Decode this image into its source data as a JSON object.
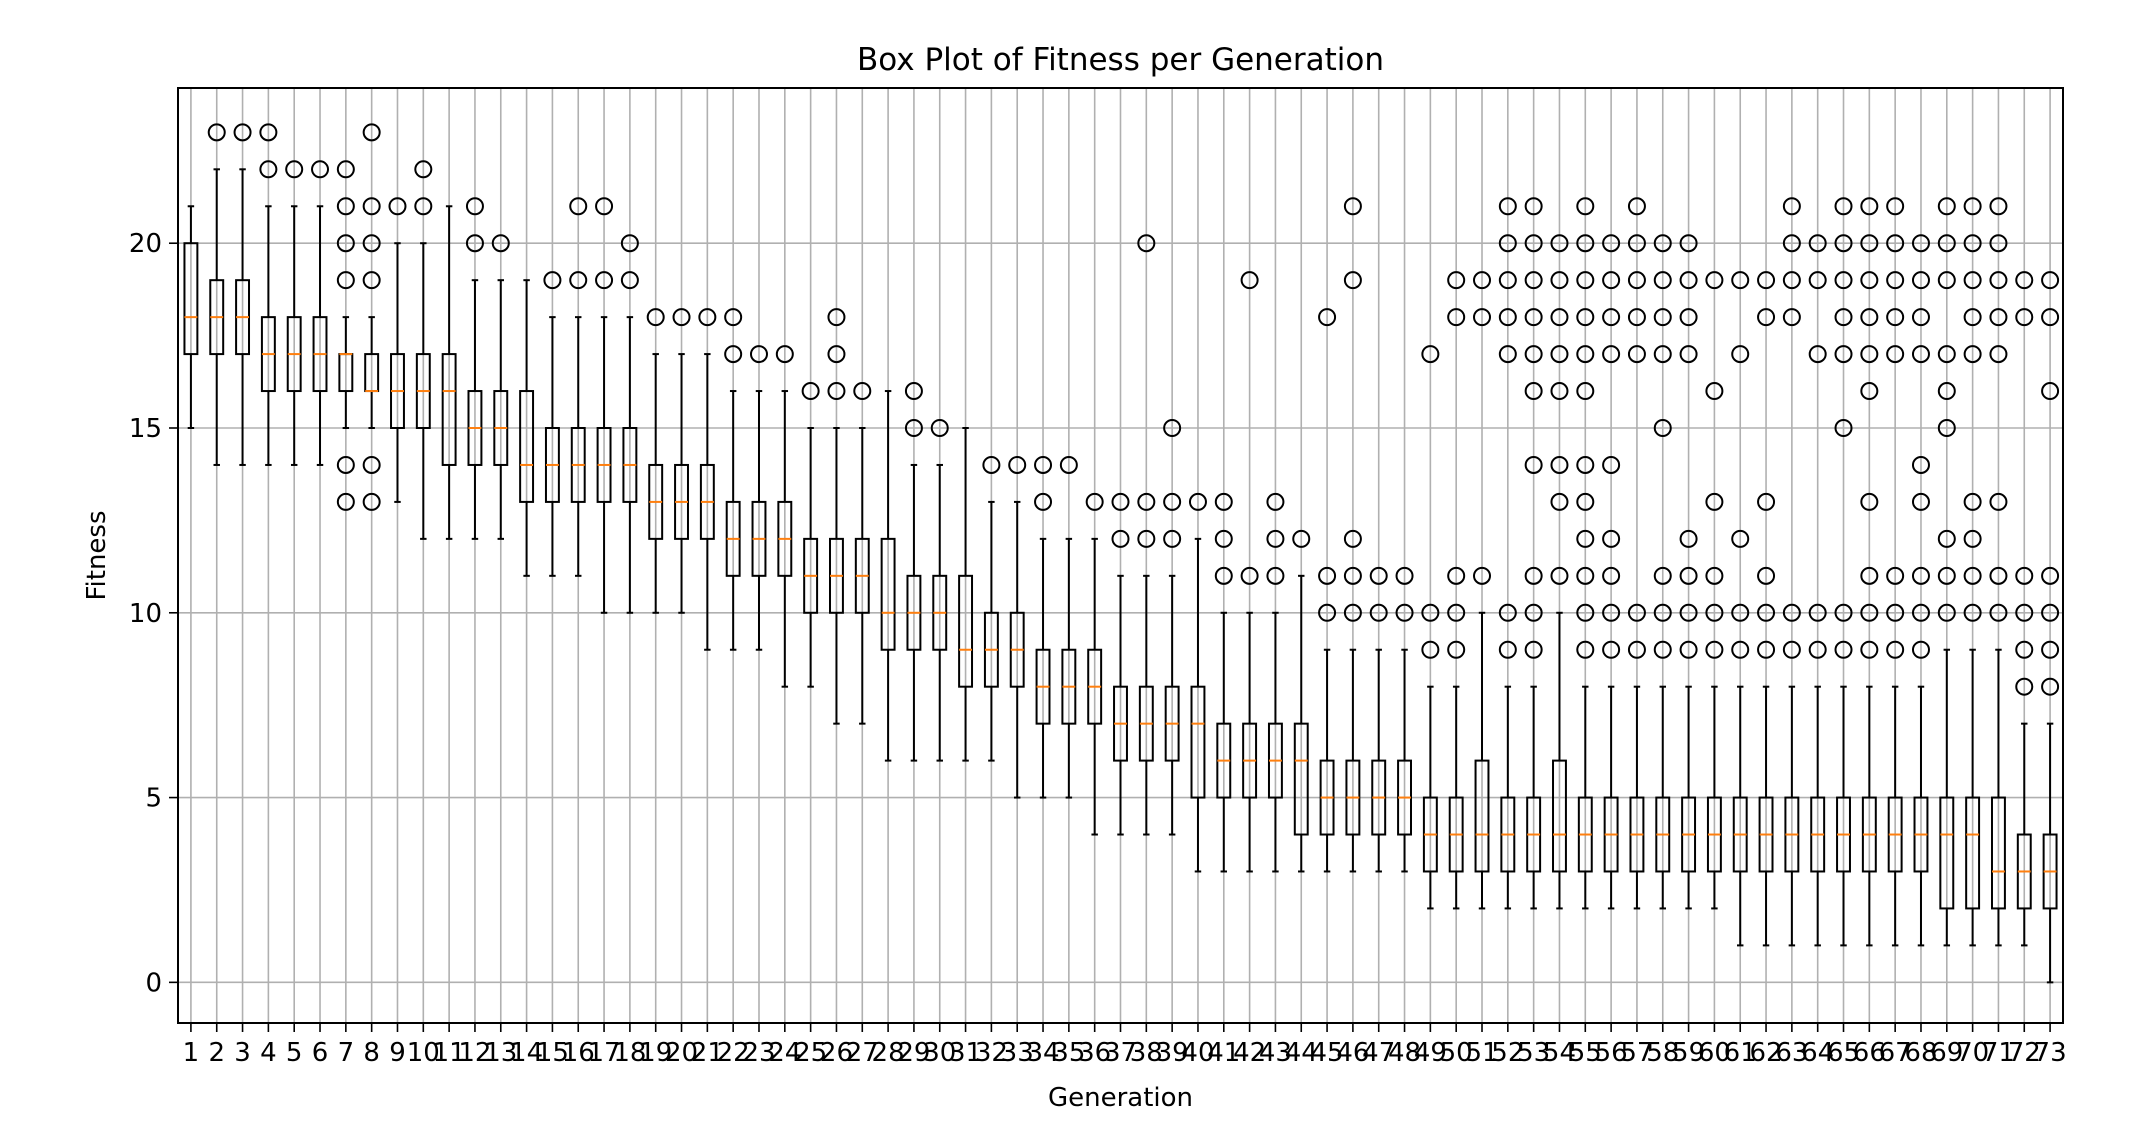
{
  "chart_data": {
    "type": "box",
    "title": "Box Plot of Fitness per Generation",
    "xlabel": "Generation",
    "ylabel": "Fitness",
    "ylim": [
      -1.1,
      24.2
    ],
    "yticks": [
      0,
      5,
      10,
      15,
      20
    ],
    "grid": true,
    "colors": {
      "box": "#000000",
      "median": "#ff7f0e",
      "grid": "#b0b0b0",
      "flier": "#000000"
    },
    "categories": [
      "1",
      "2",
      "3",
      "4",
      "5",
      "6",
      "7",
      "8",
      "9",
      "10",
      "11",
      "12",
      "13",
      "14",
      "15",
      "16",
      "17",
      "18",
      "19",
      "20",
      "21",
      "22",
      "23",
      "24",
      "25",
      "26",
      "27",
      "28",
      "29",
      "30",
      "31",
      "32",
      "33",
      "34",
      "35",
      "36",
      "37",
      "38",
      "39",
      "40",
      "41",
      "42",
      "43",
      "44",
      "45",
      "46",
      "47",
      "48",
      "49",
      "50",
      "51",
      "52",
      "53",
      "54",
      "55",
      "56",
      "57",
      "58",
      "59",
      "60",
      "61",
      "62",
      "63",
      "64",
      "65",
      "66",
      "67",
      "68",
      "69",
      "70",
      "71",
      "72",
      "73"
    ],
    "boxes": [
      {
        "whislo": 15,
        "q1": 17,
        "med": 18,
        "q3": 20,
        "whishi": 21,
        "fliers": []
      },
      {
        "whislo": 14,
        "q1": 17,
        "med": 18,
        "q3": 19,
        "whishi": 22,
        "fliers": [
          23
        ]
      },
      {
        "whislo": 14,
        "q1": 17,
        "med": 18,
        "q3": 19,
        "whishi": 22,
        "fliers": [
          23
        ]
      },
      {
        "whislo": 14,
        "q1": 16,
        "med": 17,
        "q3": 18,
        "whishi": 21,
        "fliers": [
          22,
          23
        ]
      },
      {
        "whislo": 14,
        "q1": 16,
        "med": 17,
        "q3": 18,
        "whishi": 21,
        "fliers": [
          22
        ]
      },
      {
        "whislo": 14,
        "q1": 16,
        "med": 17,
        "q3": 18,
        "whishi": 21,
        "fliers": [
          22
        ]
      },
      {
        "whislo": 15,
        "q1": 16,
        "med": 17,
        "q3": 17,
        "whishi": 18,
        "fliers": [
          13,
          14,
          19,
          20,
          21,
          22
        ]
      },
      {
        "whislo": 15,
        "q1": 16,
        "med": 16,
        "q3": 17,
        "whishi": 18,
        "fliers": [
          13,
          14,
          19,
          20,
          21,
          23
        ]
      },
      {
        "whislo": 13,
        "q1": 15,
        "med": 16,
        "q3": 17,
        "whishi": 20,
        "fliers": [
          21
        ]
      },
      {
        "whislo": 12,
        "q1": 15,
        "med": 16,
        "q3": 17,
        "whishi": 20,
        "fliers": [
          21,
          22
        ]
      },
      {
        "whislo": 12,
        "q1": 14,
        "med": 16,
        "q3": 17,
        "whishi": 21,
        "fliers": []
      },
      {
        "whislo": 12,
        "q1": 14,
        "med": 15,
        "q3": 16,
        "whishi": 19,
        "fliers": [
          20,
          21
        ]
      },
      {
        "whislo": 12,
        "q1": 14,
        "med": 15,
        "q3": 16,
        "whishi": 19,
        "fliers": [
          20
        ]
      },
      {
        "whislo": 11,
        "q1": 13,
        "med": 14,
        "q3": 16,
        "whishi": 19,
        "fliers": []
      },
      {
        "whislo": 11,
        "q1": 13,
        "med": 14,
        "q3": 15,
        "whishi": 18,
        "fliers": [
          19
        ]
      },
      {
        "whislo": 11,
        "q1": 13,
        "med": 14,
        "q3": 15,
        "whishi": 18,
        "fliers": [
          19,
          21
        ]
      },
      {
        "whislo": 10,
        "q1": 13,
        "med": 14,
        "q3": 15,
        "whishi": 18,
        "fliers": [
          19,
          21
        ]
      },
      {
        "whislo": 10,
        "q1": 13,
        "med": 14,
        "q3": 15,
        "whishi": 18,
        "fliers": [
          19,
          20
        ]
      },
      {
        "whislo": 10,
        "q1": 12,
        "med": 13,
        "q3": 14,
        "whishi": 17,
        "fliers": [
          18
        ]
      },
      {
        "whislo": 10,
        "q1": 12,
        "med": 13,
        "q3": 14,
        "whishi": 17,
        "fliers": [
          18
        ]
      },
      {
        "whislo": 9,
        "q1": 12,
        "med": 13,
        "q3": 14,
        "whishi": 17,
        "fliers": [
          18
        ]
      },
      {
        "whislo": 9,
        "q1": 11,
        "med": 12,
        "q3": 13,
        "whishi": 16,
        "fliers": [
          17,
          18
        ]
      },
      {
        "whislo": 9,
        "q1": 11,
        "med": 12,
        "q3": 13,
        "whishi": 16,
        "fliers": [
          17
        ]
      },
      {
        "whislo": 8,
        "q1": 11,
        "med": 12,
        "q3": 13,
        "whishi": 16,
        "fliers": [
          17
        ]
      },
      {
        "whislo": 8,
        "q1": 10,
        "med": 11,
        "q3": 12,
        "whishi": 15,
        "fliers": [
          16
        ]
      },
      {
        "whislo": 7,
        "q1": 10,
        "med": 11,
        "q3": 12,
        "whishi": 15,
        "fliers": [
          16,
          17,
          18
        ]
      },
      {
        "whislo": 7,
        "q1": 10,
        "med": 11,
        "q3": 12,
        "whishi": 15,
        "fliers": [
          16
        ]
      },
      {
        "whislo": 6,
        "q1": 9,
        "med": 10,
        "q3": 12,
        "whishi": 16,
        "fliers": []
      },
      {
        "whislo": 6,
        "q1": 9,
        "med": 10,
        "q3": 11,
        "whishi": 14,
        "fliers": [
          15,
          16
        ]
      },
      {
        "whislo": 6,
        "q1": 9,
        "med": 10,
        "q3": 11,
        "whishi": 14,
        "fliers": [
          15
        ]
      },
      {
        "whislo": 6,
        "q1": 8,
        "med": 9,
        "q3": 11,
        "whishi": 15,
        "fliers": []
      },
      {
        "whislo": 6,
        "q1": 8,
        "med": 9,
        "q3": 10,
        "whishi": 13,
        "fliers": [
          14
        ]
      },
      {
        "whislo": 5,
        "q1": 8,
        "med": 9,
        "q3": 10,
        "whishi": 13,
        "fliers": [
          14
        ]
      },
      {
        "whislo": 5,
        "q1": 7,
        "med": 8,
        "q3": 9,
        "whishi": 12,
        "fliers": [
          13,
          14
        ]
      },
      {
        "whislo": 5,
        "q1": 7,
        "med": 8,
        "q3": 9,
        "whishi": 12,
        "fliers": [
          14
        ]
      },
      {
        "whislo": 4,
        "q1": 7,
        "med": 8,
        "q3": 9,
        "whishi": 12,
        "fliers": [
          13
        ]
      },
      {
        "whislo": 4,
        "q1": 6,
        "med": 7,
        "q3": 8,
        "whishi": 11,
        "fliers": [
          12,
          13
        ]
      },
      {
        "whislo": 4,
        "q1": 6,
        "med": 7,
        "q3": 8,
        "whishi": 11,
        "fliers": [
          12,
          13,
          20
        ]
      },
      {
        "whislo": 4,
        "q1": 6,
        "med": 7,
        "q3": 8,
        "whishi": 11,
        "fliers": [
          12,
          13,
          15
        ]
      },
      {
        "whislo": 3,
        "q1": 5,
        "med": 7,
        "q3": 8,
        "whishi": 12,
        "fliers": [
          13
        ]
      },
      {
        "whislo": 3,
        "q1": 5,
        "med": 6,
        "q3": 7,
        "whishi": 10,
        "fliers": [
          11,
          12,
          13
        ]
      },
      {
        "whislo": 3,
        "q1": 5,
        "med": 6,
        "q3": 7,
        "whishi": 10,
        "fliers": [
          11,
          19
        ]
      },
      {
        "whislo": 3,
        "q1": 5,
        "med": 6,
        "q3": 7,
        "whishi": 10,
        "fliers": [
          11,
          12,
          13
        ]
      },
      {
        "whislo": 3,
        "q1": 4,
        "med": 6,
        "q3": 7,
        "whishi": 11,
        "fliers": [
          12
        ]
      },
      {
        "whislo": 3,
        "q1": 4,
        "med": 5,
        "q3": 6,
        "whishi": 9,
        "fliers": [
          10,
          11,
          18
        ]
      },
      {
        "whislo": 3,
        "q1": 4,
        "med": 5,
        "q3": 6,
        "whishi": 9,
        "fliers": [
          10,
          11,
          12,
          19,
          21
        ]
      },
      {
        "whislo": 3,
        "q1": 4,
        "med": 5,
        "q3": 6,
        "whishi": 9,
        "fliers": [
          10,
          11
        ]
      },
      {
        "whislo": 3,
        "q1": 4,
        "med": 5,
        "q3": 6,
        "whishi": 9,
        "fliers": [
          10,
          11
        ]
      },
      {
        "whislo": 2,
        "q1": 3,
        "med": 4,
        "q3": 5,
        "whishi": 8,
        "fliers": [
          9,
          10,
          17
        ]
      },
      {
        "whislo": 2,
        "q1": 3,
        "med": 4,
        "q3": 5,
        "whishi": 8,
        "fliers": [
          9,
          10,
          11,
          18,
          19
        ]
      },
      {
        "whislo": 2,
        "q1": 3,
        "med": 4,
        "q3": 6,
        "whishi": 10,
        "fliers": [
          11,
          18,
          19
        ]
      },
      {
        "whislo": 2,
        "q1": 3,
        "med": 4,
        "q3": 5,
        "whishi": 8,
        "fliers": [
          9,
          10,
          17,
          18,
          19,
          20,
          21
        ]
      },
      {
        "whislo": 2,
        "q1": 3,
        "med": 4,
        "q3": 5,
        "whishi": 8,
        "fliers": [
          9,
          10,
          11,
          14,
          16,
          17,
          18,
          19,
          20,
          21
        ]
      },
      {
        "whislo": 2,
        "q1": 3,
        "med": 4,
        "q3": 6,
        "whishi": 10,
        "fliers": [
          11,
          13,
          14,
          16,
          17,
          18,
          19,
          20
        ]
      },
      {
        "whislo": 2,
        "q1": 3,
        "med": 4,
        "q3": 5,
        "whishi": 8,
        "fliers": [
          9,
          10,
          11,
          12,
          13,
          14,
          16,
          17,
          18,
          19,
          20,
          21
        ]
      },
      {
        "whislo": 2,
        "q1": 3,
        "med": 4,
        "q3": 5,
        "whishi": 8,
        "fliers": [
          9,
          10,
          11,
          12,
          14,
          17,
          18,
          19,
          20
        ]
      },
      {
        "whislo": 2,
        "q1": 3,
        "med": 4,
        "q3": 5,
        "whishi": 8,
        "fliers": [
          9,
          10,
          17,
          18,
          19,
          20,
          21
        ]
      },
      {
        "whislo": 2,
        "q1": 3,
        "med": 4,
        "q3": 5,
        "whishi": 8,
        "fliers": [
          9,
          10,
          11,
          15,
          17,
          18,
          19,
          20
        ]
      },
      {
        "whislo": 2,
        "q1": 3,
        "med": 4,
        "q3": 5,
        "whishi": 8,
        "fliers": [
          9,
          10,
          11,
          12,
          17,
          18,
          19,
          20
        ]
      },
      {
        "whislo": 2,
        "q1": 3,
        "med": 4,
        "q3": 5,
        "whishi": 8,
        "fliers": [
          9,
          10,
          11,
          13,
          16,
          19
        ]
      },
      {
        "whislo": 1,
        "q1": 3,
        "med": 4,
        "q3": 5,
        "whishi": 8,
        "fliers": [
          9,
          10,
          12,
          17,
          19
        ]
      },
      {
        "whislo": 1,
        "q1": 3,
        "med": 4,
        "q3": 5,
        "whishi": 8,
        "fliers": [
          9,
          10,
          11,
          13,
          18,
          19
        ]
      },
      {
        "whislo": 1,
        "q1": 3,
        "med": 4,
        "q3": 5,
        "whishi": 8,
        "fliers": [
          9,
          10,
          18,
          19,
          20,
          21
        ]
      },
      {
        "whislo": 1,
        "q1": 3,
        "med": 4,
        "q3": 5,
        "whishi": 8,
        "fliers": [
          9,
          10,
          17,
          19,
          20
        ]
      },
      {
        "whislo": 1,
        "q1": 3,
        "med": 4,
        "q3": 5,
        "whishi": 8,
        "fliers": [
          9,
          10,
          15,
          17,
          18,
          19,
          20,
          21
        ]
      },
      {
        "whislo": 1,
        "q1": 3,
        "med": 4,
        "q3": 5,
        "whishi": 8,
        "fliers": [
          9,
          10,
          11,
          13,
          16,
          17,
          18,
          19,
          20,
          21
        ]
      },
      {
        "whislo": 1,
        "q1": 3,
        "med": 4,
        "q3": 5,
        "whishi": 8,
        "fliers": [
          9,
          10,
          11,
          17,
          18,
          19,
          20,
          21
        ]
      },
      {
        "whislo": 1,
        "q1": 3,
        "med": 4,
        "q3": 5,
        "whishi": 8,
        "fliers": [
          9,
          10,
          11,
          13,
          14,
          17,
          18,
          19,
          20
        ]
      },
      {
        "whislo": 1,
        "q1": 2,
        "med": 4,
        "q3": 5,
        "whishi": 9,
        "fliers": [
          10,
          11,
          12,
          15,
          16,
          17,
          19,
          20,
          21
        ]
      },
      {
        "whislo": 1,
        "q1": 2,
        "med": 4,
        "q3": 5,
        "whishi": 9,
        "fliers": [
          10,
          11,
          12,
          13,
          17,
          18,
          19,
          20,
          21
        ]
      },
      {
        "whislo": 1,
        "q1": 2,
        "med": 3,
        "q3": 5,
        "whishi": 9,
        "fliers": [
          10,
          11,
          13,
          17,
          18,
          19,
          20,
          21
        ]
      },
      {
        "whislo": 1,
        "q1": 2,
        "med": 3,
        "q3": 4,
        "whishi": 7,
        "fliers": [
          8,
          9,
          10,
          11,
          18,
          19
        ]
      },
      {
        "whislo": 0,
        "q1": 2,
        "med": 3,
        "q3": 4,
        "whishi": 7,
        "fliers": [
          8,
          9,
          10,
          11,
          16,
          18,
          19
        ]
      }
    ]
  }
}
